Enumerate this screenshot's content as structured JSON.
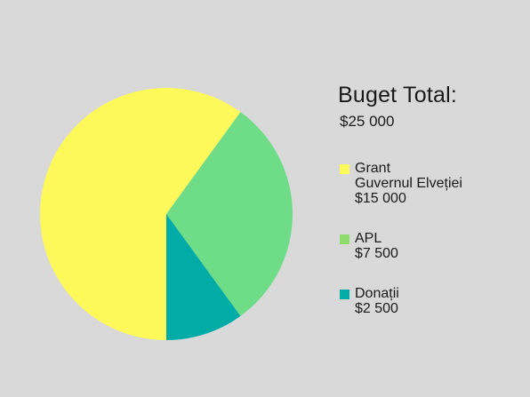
{
  "legend_title": "Buget Total:",
  "total": "$25 000",
  "colors": {
    "background": "#d9d9d9",
    "grant": "#fef95a",
    "apl": "#6fdc87",
    "donatii": "#00aca5"
  },
  "legend": [
    {
      "lines": [
        "Grant",
        "Guvernul Elveției"
      ],
      "value": "$15 000",
      "color": "#fef95a"
    },
    {
      "lines": [
        "APL"
      ],
      "value": "$7 500",
      "color": "#8fdc6b"
    },
    {
      "lines": [
        "Donații"
      ],
      "value": "$2 500",
      "color": "#00aca5"
    }
  ],
  "chart_data": {
    "type": "pie",
    "title": "Buget Total:",
    "subtitle": "$25 000",
    "slices": [
      {
        "label": "Grant Guvernul Elveției",
        "value": 15000,
        "color": "#fef95a"
      },
      {
        "label": "APL",
        "value": 7500,
        "color": "#6fdc87"
      },
      {
        "label": "Donații",
        "value": 2500,
        "color": "#00aca5"
      }
    ],
    "start_angle_deg": 180,
    "direction": "clockwise",
    "legend_position": "right"
  }
}
